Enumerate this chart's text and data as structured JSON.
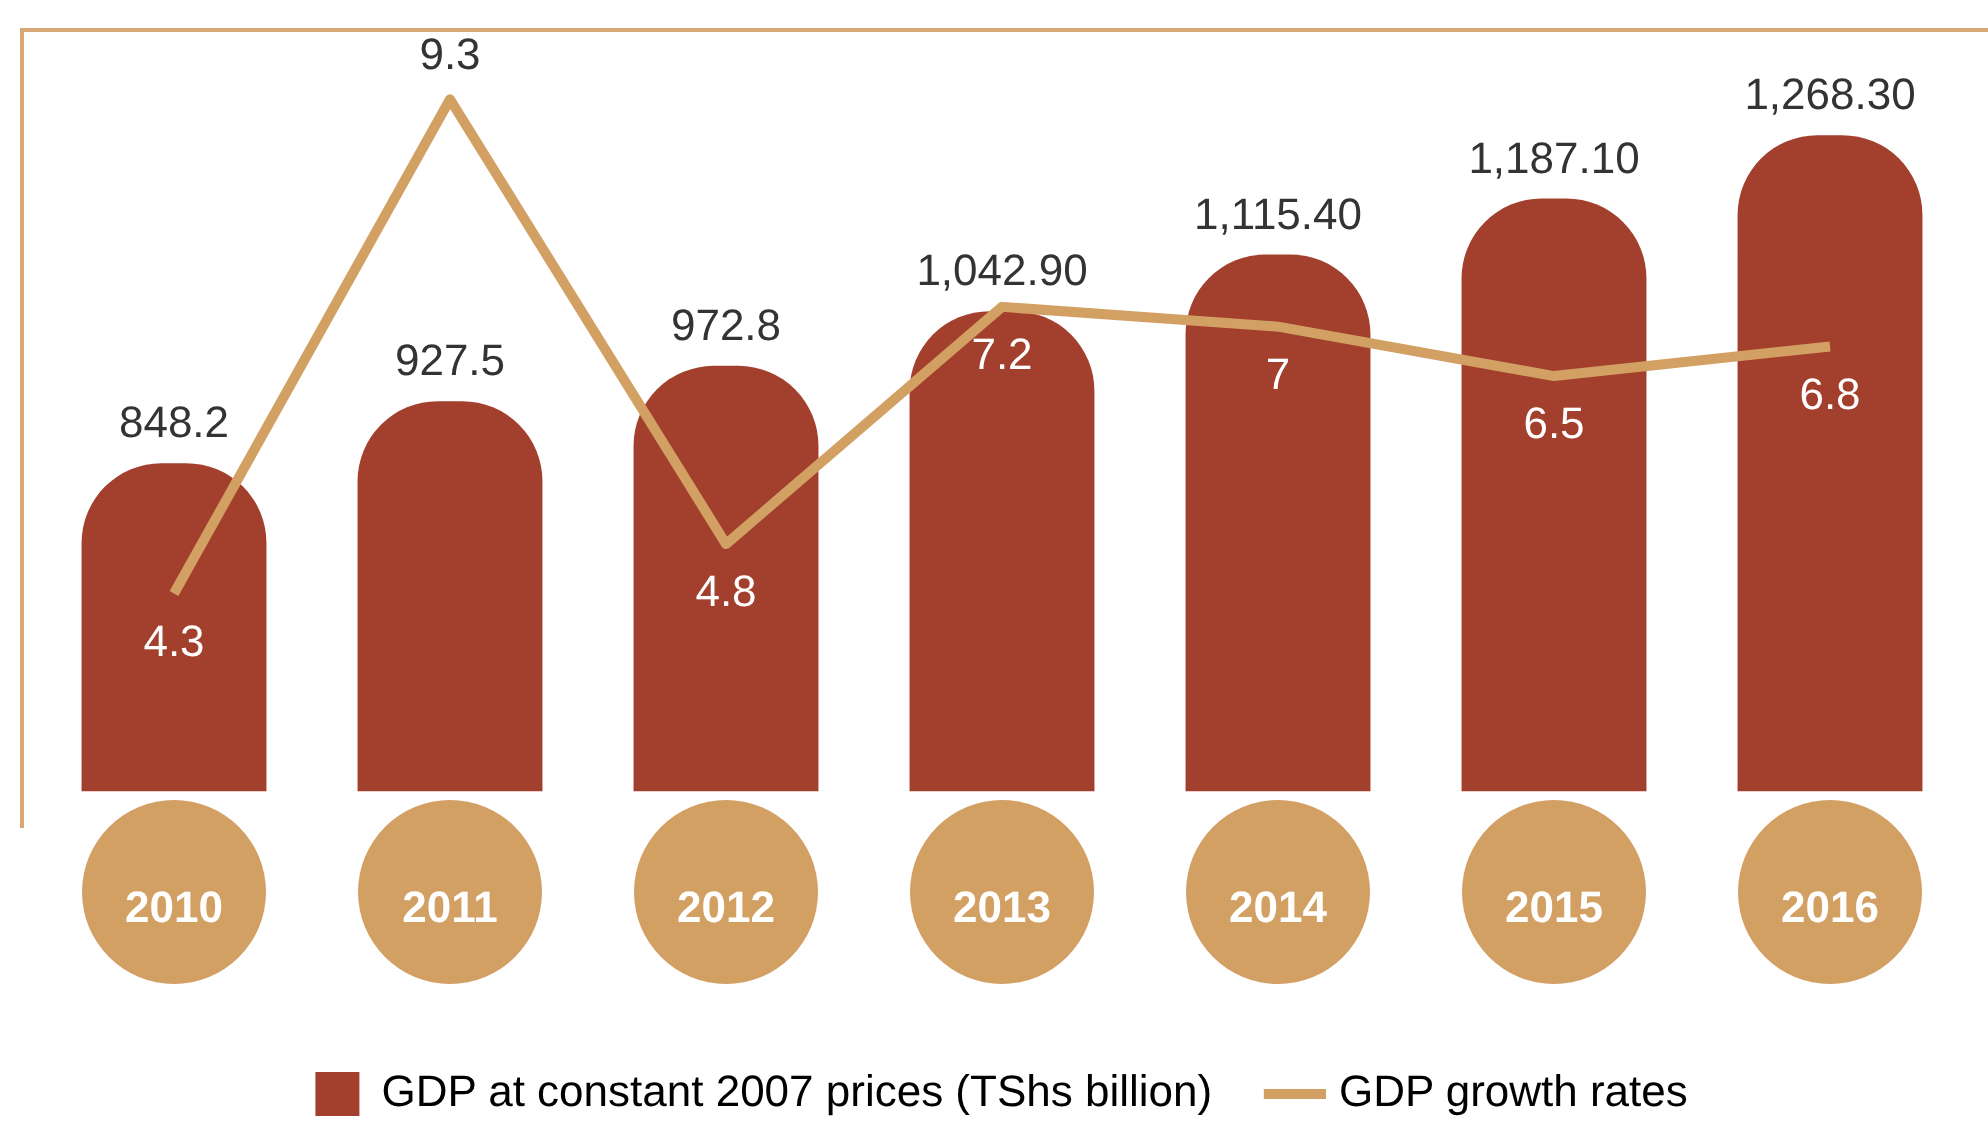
{
  "chart_data": {
    "type": "bar",
    "categories": [
      "2010",
      "2011",
      "2012",
      "2013",
      "2014",
      "2015",
      "2016"
    ],
    "series": [
      {
        "name": "GDP at constant 2007 prices (TShs billion)",
        "color": "#a3402d",
        "values": [
          848.2,
          927.5,
          972.8,
          1042.9,
          1115.4,
          1187.1,
          1268.3
        ],
        "value_labels": [
          "848.2",
          "927.5",
          "972.8",
          "1,042.90",
          "1,115.40",
          "1,187.10",
          "1,268.30"
        ]
      },
      {
        "name": "GDP growth rates",
        "type": "line",
        "axis": "y2",
        "color": "#d3a064",
        "values": [
          4.3,
          9.3,
          4.8,
          7.2,
          7,
          6.5,
          6.8
        ],
        "value_labels": [
          "4.3",
          "9.3",
          "4.8",
          "7.2",
          "7",
          "6.5",
          "6.8"
        ]
      }
    ],
    "legend": "bottom",
    "grid": false,
    "marker": "none"
  }
}
